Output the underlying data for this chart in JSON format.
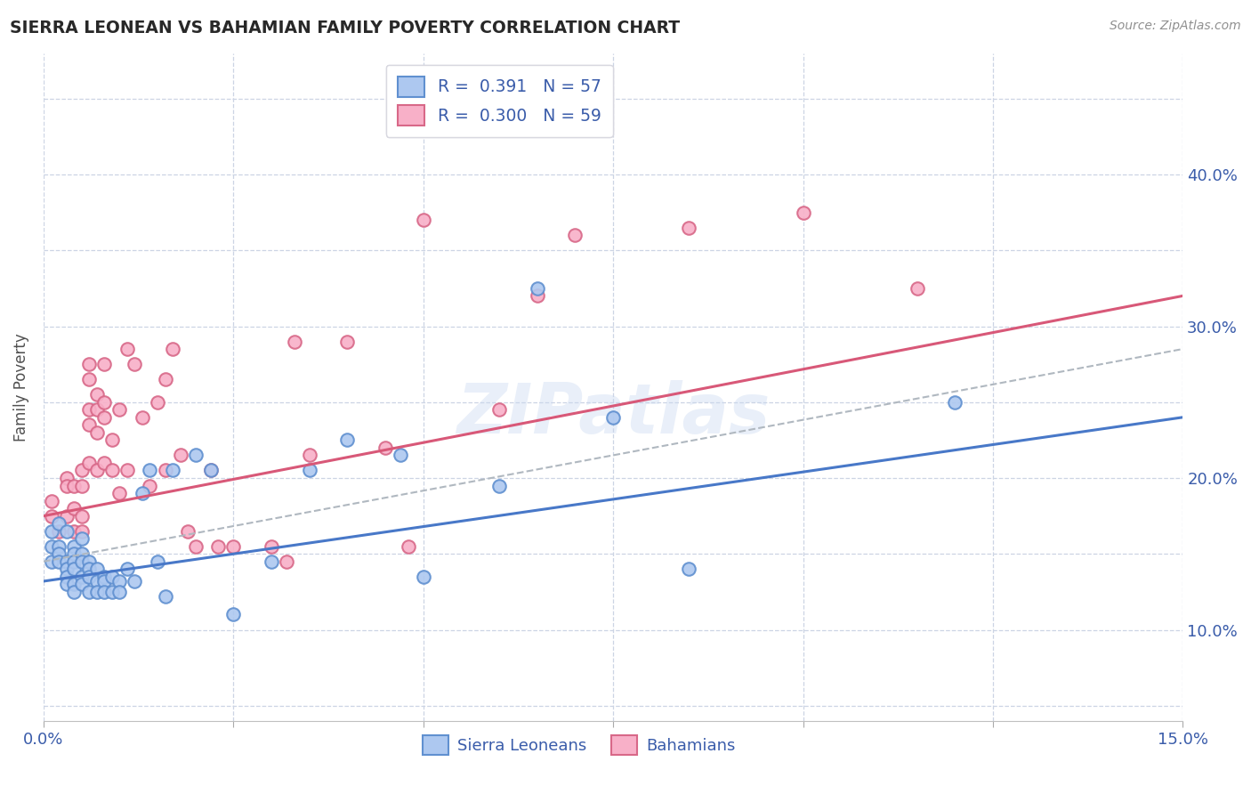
{
  "title": "SIERRA LEONEAN VS BAHAMIAN FAMILY POVERTY CORRELATION CHART",
  "source": "Source: ZipAtlas.com",
  "ylabel": "Family Poverty",
  "xlim": [
    0.0,
    0.15
  ],
  "ylim": [
    -0.01,
    0.43
  ],
  "watermark": "ZIPatlas",
  "sl_face_color": "#adc8f0",
  "sl_edge_color": "#6090d0",
  "bah_face_color": "#f8b0c8",
  "bah_edge_color": "#d86888",
  "sl_trend_color": "#4878c8",
  "bah_trend_color": "#d85878",
  "dash_color": "#b0b8c0",
  "grid_color": "#ccd4e4",
  "bg_color": "#ffffff",
  "title_color": "#282828",
  "axis_label_color": "#3a5caa",
  "R_sl": 0.391,
  "N_sl": 57,
  "R_bah": 0.3,
  "N_bah": 59,
  "sl_trend_x0": 0.0,
  "sl_trend_y0": 0.082,
  "sl_trend_x1": 0.15,
  "sl_trend_y1": 0.19,
  "bah_trend_x0": 0.0,
  "bah_trend_y0": 0.125,
  "bah_trend_x1": 0.15,
  "bah_trend_y1": 0.27,
  "dash_trend_x0": 0.0,
  "dash_trend_y0": 0.095,
  "dash_trend_x1": 0.15,
  "dash_trend_y1": 0.235,
  "sl_x": [
    0.001,
    0.001,
    0.001,
    0.002,
    0.002,
    0.002,
    0.002,
    0.003,
    0.003,
    0.003,
    0.003,
    0.003,
    0.004,
    0.004,
    0.004,
    0.004,
    0.004,
    0.004,
    0.005,
    0.005,
    0.005,
    0.005,
    0.005,
    0.006,
    0.006,
    0.006,
    0.006,
    0.007,
    0.007,
    0.007,
    0.008,
    0.008,
    0.008,
    0.009,
    0.009,
    0.01,
    0.01,
    0.011,
    0.012,
    0.013,
    0.014,
    0.015,
    0.016,
    0.017,
    0.02,
    0.022,
    0.025,
    0.03,
    0.035,
    0.04,
    0.047,
    0.05,
    0.06,
    0.065,
    0.075,
    0.085,
    0.12
  ],
  "sl_y": [
    0.115,
    0.105,
    0.095,
    0.12,
    0.105,
    0.1,
    0.095,
    0.115,
    0.095,
    0.09,
    0.085,
    0.08,
    0.105,
    0.1,
    0.095,
    0.09,
    0.08,
    0.075,
    0.11,
    0.1,
    0.095,
    0.085,
    0.08,
    0.095,
    0.09,
    0.085,
    0.075,
    0.09,
    0.082,
    0.075,
    0.085,
    0.082,
    0.075,
    0.085,
    0.075,
    0.082,
    0.075,
    0.09,
    0.082,
    0.14,
    0.155,
    0.095,
    0.072,
    0.155,
    0.165,
    0.155,
    0.06,
    0.095,
    0.155,
    0.175,
    0.165,
    0.085,
    0.145,
    0.275,
    0.19,
    0.09,
    0.2
  ],
  "bah_x": [
    0.001,
    0.001,
    0.002,
    0.003,
    0.003,
    0.003,
    0.004,
    0.004,
    0.004,
    0.005,
    0.005,
    0.005,
    0.005,
    0.006,
    0.006,
    0.006,
    0.006,
    0.006,
    0.007,
    0.007,
    0.007,
    0.007,
    0.008,
    0.008,
    0.008,
    0.008,
    0.009,
    0.009,
    0.01,
    0.01,
    0.011,
    0.011,
    0.012,
    0.013,
    0.014,
    0.015,
    0.016,
    0.016,
    0.017,
    0.018,
    0.019,
    0.02,
    0.022,
    0.023,
    0.025,
    0.03,
    0.032,
    0.033,
    0.035,
    0.04,
    0.045,
    0.048,
    0.05,
    0.06,
    0.065,
    0.07,
    0.085,
    0.1,
    0.115
  ],
  "bah_y": [
    0.135,
    0.125,
    0.115,
    0.15,
    0.145,
    0.125,
    0.145,
    0.13,
    0.115,
    0.155,
    0.145,
    0.125,
    0.115,
    0.225,
    0.215,
    0.195,
    0.185,
    0.16,
    0.205,
    0.195,
    0.18,
    0.155,
    0.225,
    0.2,
    0.19,
    0.16,
    0.175,
    0.155,
    0.195,
    0.14,
    0.235,
    0.155,
    0.225,
    0.19,
    0.145,
    0.2,
    0.215,
    0.155,
    0.235,
    0.165,
    0.115,
    0.105,
    0.155,
    0.105,
    0.105,
    0.105,
    0.095,
    0.24,
    0.165,
    0.24,
    0.17,
    0.105,
    0.32,
    0.195,
    0.27,
    0.31,
    0.315,
    0.325,
    0.275
  ]
}
